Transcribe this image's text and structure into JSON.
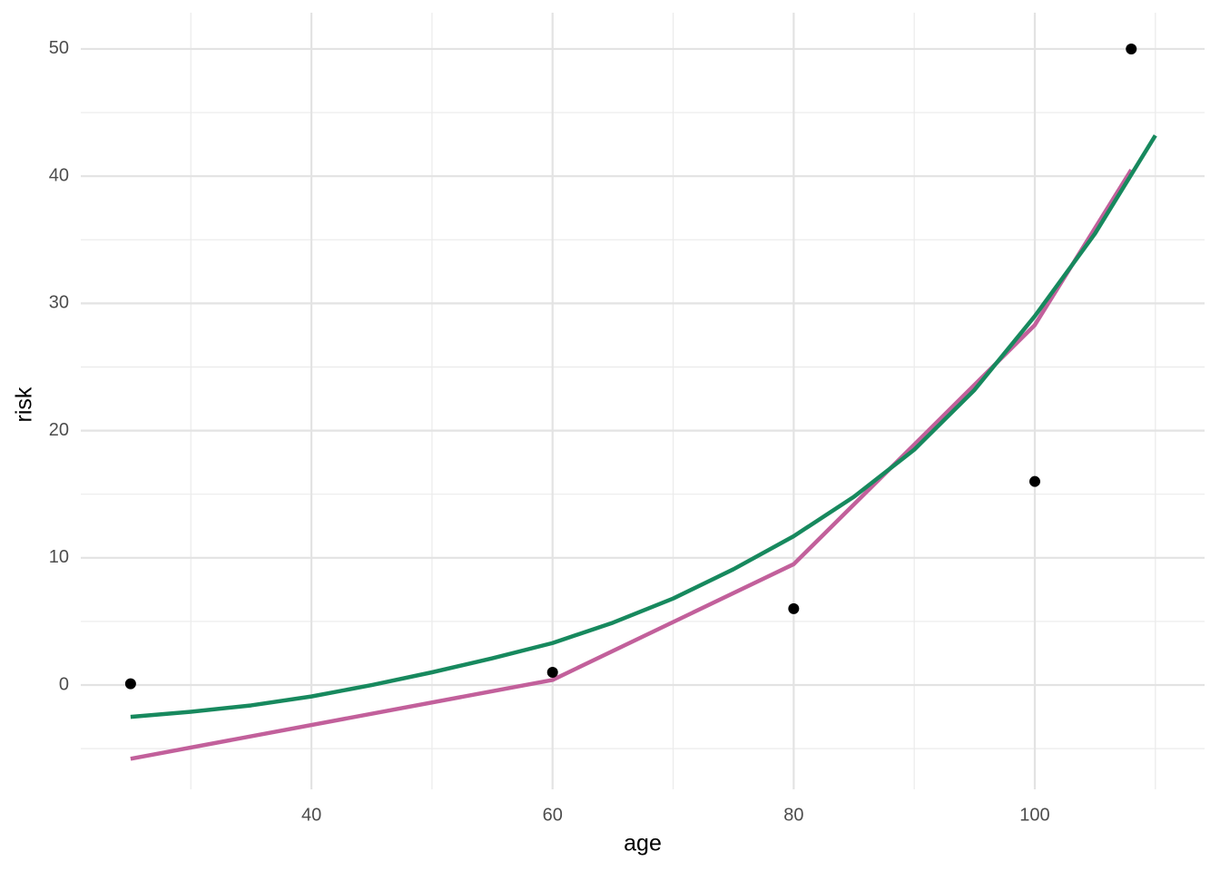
{
  "chart_data": {
    "type": "line",
    "x_label": "age",
    "y_label": "risk",
    "xlim": [
      20.87,
      114.08
    ],
    "ylim": [
      -8.2,
      52.85
    ],
    "xticks": [
      40,
      60,
      80,
      100
    ],
    "yticks": [
      0,
      10,
      20,
      30,
      40,
      50
    ],
    "grid": true,
    "series": [
      {
        "type": "scatter",
        "color": "#000000",
        "x": [
          25,
          60,
          80,
          100,
          108
        ],
        "values": [
          0.1,
          1,
          6,
          16,
          50
        ]
      },
      {
        "type": "line",
        "color": "#c2609b",
        "x": [
          25,
          60,
          80,
          100,
          108
        ],
        "values": [
          -5.8,
          0.4,
          9.5,
          28.3,
          40.5
        ]
      },
      {
        "type": "line",
        "color": "#17895e",
        "x": [
          25,
          30,
          35,
          40,
          45,
          50,
          55,
          60,
          65,
          70,
          75,
          80,
          85,
          90,
          95,
          100,
          105,
          110
        ],
        "values": [
          -2.5,
          -2.1,
          -1.6,
          -0.9,
          0,
          1,
          2.1,
          3.3,
          4.9,
          6.8,
          9.1,
          11.7,
          14.8,
          18.5,
          23.2,
          29,
          35.5,
          43.2
        ]
      }
    ]
  }
}
